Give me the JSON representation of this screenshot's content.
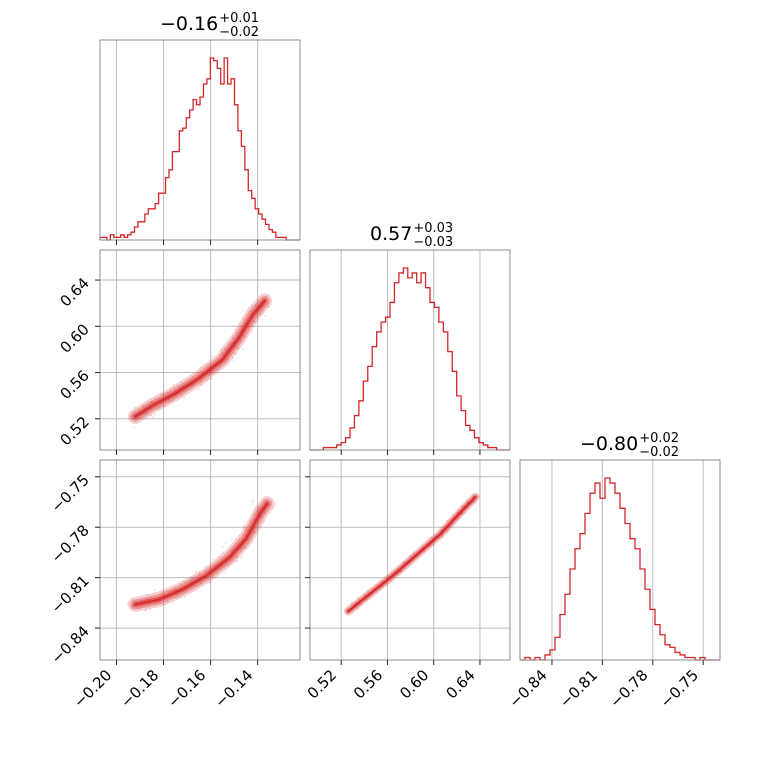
{
  "chart_data": {
    "type": "corner",
    "color": "#d62728",
    "parameters": [
      {
        "summary": {
          "median": "−0.16",
          "plus": "+0.01",
          "minus": "−0.02"
        },
        "range": [
          -0.207,
          -0.122
        ],
        "ticks": [
          -0.2,
          -0.18,
          -0.16,
          -0.14
        ],
        "tick_labels": [
          "−0.20",
          "−0.18",
          "−0.16",
          "−0.14"
        ],
        "histogram": [
          1,
          1,
          0,
          2,
          1,
          1,
          2,
          1,
          2,
          3,
          5,
          7,
          7,
          10,
          12,
          12,
          14,
          18,
          18,
          24,
          27,
          34,
          34,
          42,
          43,
          47,
          50,
          54,
          52,
          55,
          60,
          62,
          70,
          69,
          66,
          60,
          70,
          60,
          62,
          52,
          42,
          36,
          27,
          19,
          16,
          12,
          10,
          8,
          6,
          4,
          3,
          1,
          1,
          1,
          0,
          0,
          0,
          0
        ]
      },
      {
        "summary": {
          "median": "0.57",
          "plus": "+0.03",
          "minus": "−0.03"
        },
        "range": [
          0.493,
          0.666
        ],
        "ticks": [
          0.52,
          0.56,
          0.6,
          0.64
        ],
        "tick_labels": [
          "0.52",
          "0.56",
          "0.60",
          "0.64"
        ],
        "histogram": [
          0,
          0,
          0,
          1,
          1,
          1,
          2,
          3,
          5,
          9,
          14,
          20,
          28,
          34,
          42,
          48,
          52,
          54,
          60,
          68,
          72,
          74,
          70,
          72,
          68,
          72,
          66,
          60,
          58,
          52,
          48,
          40,
          32,
          22,
          16,
          10,
          8,
          5,
          3,
          2,
          1,
          1,
          0,
          0,
          0
        ]
      },
      {
        "summary": {
          "median": "−0.80",
          "plus": "+0.02",
          "minus": "−0.02"
        },
        "range": [
          -0.859,
          -0.74
        ],
        "ticks": [
          -0.84,
          -0.81,
          -0.78,
          -0.75
        ],
        "tick_labels": [
          "−0.84",
          "−0.81",
          "−0.78",
          "−0.75"
        ],
        "histogram": [
          0,
          1,
          0,
          1,
          0,
          2,
          4,
          9,
          18,
          26,
          36,
          44,
          50,
          58,
          66,
          70,
          64,
          72,
          70,
          66,
          60,
          54,
          48,
          44,
          36,
          28,
          20,
          14,
          10,
          6,
          5,
          3,
          2,
          1,
          1,
          0,
          1,
          0,
          0,
          0
        ]
      }
    ],
    "joint_curves": [
      {
        "pair": [
          0,
          1
        ],
        "ridge": [
          [
            -0.192,
            0.522
          ],
          [
            -0.185,
            0.531
          ],
          [
            -0.175,
            0.542
          ],
          [
            -0.165,
            0.555
          ],
          [
            -0.155,
            0.571
          ],
          [
            -0.148,
            0.59
          ],
          [
            -0.142,
            0.61
          ],
          [
            -0.137,
            0.622
          ]
        ]
      },
      {
        "pair": [
          0,
          2
        ],
        "ridge": [
          [
            -0.192,
            -0.826
          ],
          [
            -0.182,
            -0.823
          ],
          [
            -0.172,
            -0.817
          ],
          [
            -0.162,
            -0.809
          ],
          [
            -0.152,
            -0.798
          ],
          [
            -0.145,
            -0.787
          ],
          [
            -0.139,
            -0.772
          ],
          [
            -0.136,
            -0.766
          ]
        ]
      },
      {
        "pair": [
          1,
          2
        ],
        "ridge": [
          [
            0.526,
            -0.83
          ],
          [
            0.546,
            -0.819
          ],
          [
            0.566,
            -0.808
          ],
          [
            0.586,
            -0.796
          ],
          [
            0.606,
            -0.784
          ],
          [
            0.622,
            -0.772
          ],
          [
            0.636,
            -0.762
          ]
        ]
      }
    ]
  }
}
